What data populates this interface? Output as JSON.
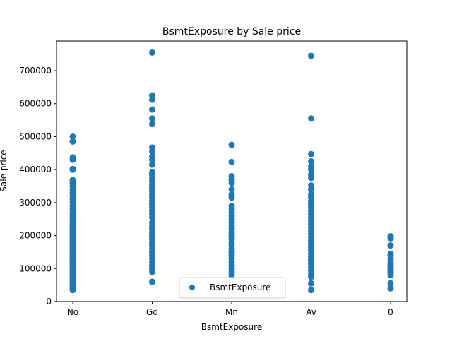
{
  "chart_data": {
    "type": "scatter",
    "title": "BsmtExposure by Sale price",
    "xlabel": "BsmtExposure",
    "ylabel": "Sale price",
    "categories": [
      "No",
      "Gd",
      "Mn",
      "Av",
      "0"
    ],
    "ylim": [
      0,
      790000
    ],
    "yticks": [
      0,
      100000,
      200000,
      300000,
      400000,
      500000,
      600000,
      700000
    ],
    "ytick_labels": [
      "0",
      "100000",
      "200000",
      "300000",
      "400000",
      "500000",
      "600000",
      "700000"
    ],
    "grid": false,
    "legend": {
      "position": "lower center"
    },
    "marker_color": "#1f77b4",
    "series": [
      {
        "name": "BsmtExposure",
        "points": {
          "No": [
            500000,
            485000,
            437000,
            430000,
            402000,
            400000,
            368000,
            360000,
            350000,
            340000,
            330000,
            320000,
            310000,
            300000,
            290000,
            280000,
            270000,
            262000,
            255000,
            248000,
            240000,
            233000,
            226000,
            220000,
            214000,
            208000,
            202000,
            196000,
            190000,
            185000,
            180000,
            175000,
            170000,
            165000,
            160000,
            155000,
            150000,
            145000,
            140000,
            135000,
            130000,
            125000,
            120000,
            115000,
            110000,
            105000,
            100000,
            95000,
            90000,
            85000,
            80000,
            75000,
            70000,
            65000,
            60000,
            55000,
            50000,
            45000,
            40000,
            35000
          ],
          "Gd": [
            755000,
            625000,
            612000,
            582000,
            555000,
            538000,
            467000,
            455000,
            440000,
            430000,
            415000,
            392000,
            385000,
            375000,
            365000,
            355000,
            345000,
            335000,
            325000,
            315000,
            305000,
            295000,
            285000,
            275000,
            265000,
            255000,
            240000,
            230000,
            220000,
            210000,
            200000,
            190000,
            180000,
            170000,
            160000,
            150000,
            140000,
            130000,
            120000,
            110000,
            100000,
            90000,
            60000
          ],
          "Mn": [
            475000,
            423000,
            380000,
            370000,
            360000,
            340000,
            325000,
            315000,
            290000,
            280000,
            270000,
            260000,
            250000,
            240000,
            230000,
            220000,
            210000,
            200000,
            190000,
            180000,
            170000,
            160000,
            150000,
            140000,
            130000,
            120000,
            110000,
            100000,
            90000,
            80000
          ],
          "Av": [
            745000,
            555000,
            447000,
            425000,
            410000,
            400000,
            385000,
            375000,
            352000,
            340000,
            325000,
            315000,
            305000,
            295000,
            285000,
            275000,
            265000,
            255000,
            245000,
            235000,
            225000,
            215000,
            205000,
            195000,
            185000,
            175000,
            165000,
            155000,
            145000,
            135000,
            125000,
            115000,
            105000,
            95000,
            85000,
            75000,
            55000,
            35000
          ],
          "0": [
            198000,
            192000,
            170000,
            145000,
            140000,
            130000,
            120000,
            115000,
            110000,
            105000,
            100000,
            95000,
            90000,
            85000,
            80000,
            55000,
            40000
          ]
        }
      }
    ]
  }
}
